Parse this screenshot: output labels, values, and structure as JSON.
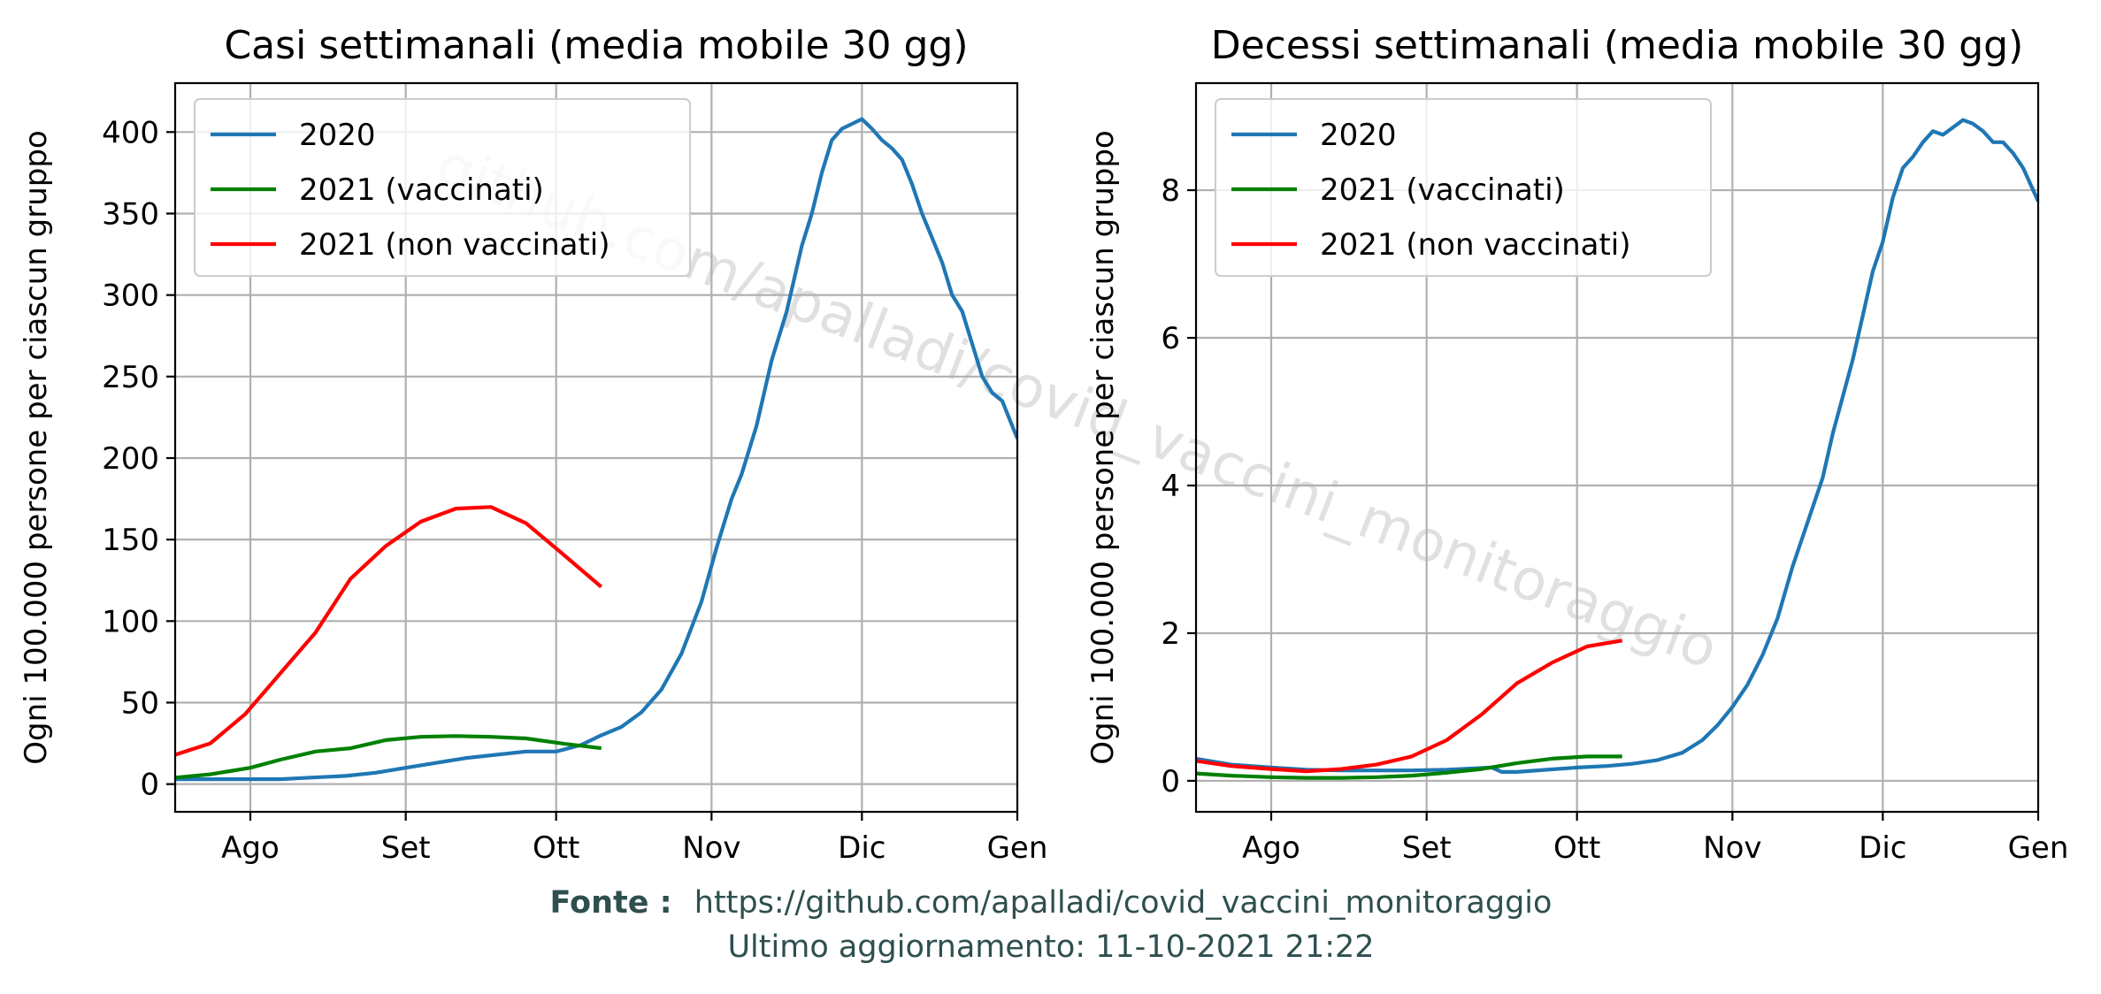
{
  "chart_data": [
    {
      "type": "line",
      "title": "Casi settimanali (media mobile 30 gg)",
      "ylabel": "Ogni 100.000 persone per ciascun gruppo",
      "x_ticks": [
        {
          "label": "Ago",
          "day": 0
        },
        {
          "label": "Set",
          "day": 31
        },
        {
          "label": "Ott",
          "day": 61
        },
        {
          "label": "Nov",
          "day": 92
        },
        {
          "label": "Dic",
          "day": 122
        },
        {
          "label": "Gen",
          "day": 153
        }
      ],
      "xlim_dates": [
        "mid-Jul",
        "Gen"
      ],
      "xlim": [
        -15,
        153
      ],
      "ylim": [
        -17,
        430
      ],
      "y_ticks": [
        0,
        50,
        100,
        150,
        200,
        250,
        300,
        350,
        400
      ],
      "grid": true,
      "legend_position": "upper-left",
      "series": [
        {
          "name": "2020",
          "color": "#1f77b4",
          "points": [
            [
              -15,
              3
            ],
            [
              -8,
              3
            ],
            [
              0,
              3
            ],
            [
              6,
              3
            ],
            [
              12,
              4
            ],
            [
              19,
              5
            ],
            [
              25,
              7
            ],
            [
              31,
              10
            ],
            [
              37,
              13
            ],
            [
              43,
              16
            ],
            [
              49,
              18
            ],
            [
              55,
              20
            ],
            [
              61,
              20
            ],
            [
              66,
              24
            ],
            [
              70,
              30
            ],
            [
              74,
              35
            ],
            [
              78,
              44
            ],
            [
              82,
              58
            ],
            [
              86,
              80
            ],
            [
              90,
              112
            ],
            [
              93,
              145
            ],
            [
              96,
              175
            ],
            [
              98,
              190
            ],
            [
              101,
              220
            ],
            [
              104,
              260
            ],
            [
              107,
              290
            ],
            [
              110,
              330
            ],
            [
              112,
              350
            ],
            [
              114,
              375
            ],
            [
              116,
              395
            ],
            [
              118,
              402
            ],
            [
              120,
              405
            ],
            [
              122,
              408
            ],
            [
              124,
              402
            ],
            [
              126,
              395
            ],
            [
              128,
              390
            ],
            [
              130,
              383
            ],
            [
              132,
              368
            ],
            [
              134,
              350
            ],
            [
              136,
              335
            ],
            [
              138,
              320
            ],
            [
              140,
              300
            ],
            [
              142,
              290
            ],
            [
              144,
              270
            ],
            [
              146,
              250
            ],
            [
              148,
              240
            ],
            [
              150,
              235
            ],
            [
              153,
              212
            ]
          ]
        },
        {
          "name": "2021 (vaccinati)",
          "color": "#008000",
          "points": [
            [
              -15,
              4
            ],
            [
              -8,
              6
            ],
            [
              0,
              10
            ],
            [
              6,
              15
            ],
            [
              13,
              20
            ],
            [
              20,
              22
            ],
            [
              27,
              27
            ],
            [
              34,
              29
            ],
            [
              41,
              29.5
            ],
            [
              48,
              29
            ],
            [
              55,
              28
            ],
            [
              62,
              25
            ],
            [
              70,
              22
            ]
          ]
        },
        {
          "name": "2021 (non vaccinati)",
          "color": "#ff0000",
          "points": [
            [
              -15,
              18
            ],
            [
              -8,
              25
            ],
            [
              -1,
              43
            ],
            [
              6,
              68
            ],
            [
              13,
              93
            ],
            [
              20,
              126
            ],
            [
              27,
              146
            ],
            [
              34,
              161
            ],
            [
              41,
              169
            ],
            [
              48,
              170
            ],
            [
              55,
              160
            ],
            [
              62,
              142
            ],
            [
              70,
              121
            ]
          ]
        }
      ]
    },
    {
      "type": "line",
      "title": "Decessi settimanali (media mobile 30 gg)",
      "ylabel": "Ogni 100.000 persone per ciascun gruppo",
      "x_ticks": [
        {
          "label": "Ago",
          "day": 0
        },
        {
          "label": "Set",
          "day": 31
        },
        {
          "label": "Ott",
          "day": 61
        },
        {
          "label": "Nov",
          "day": 92
        },
        {
          "label": "Dic",
          "day": 122
        },
        {
          "label": "Gen",
          "day": 153
        }
      ],
      "xlim_dates": [
        "mid-Jul",
        "Gen"
      ],
      "xlim": [
        -15,
        153
      ],
      "ylim": [
        -0.42,
        9.45
      ],
      "y_ticks": [
        0,
        2,
        4,
        6,
        8
      ],
      "grid": true,
      "legend_position": "upper-left",
      "series": [
        {
          "name": "2020",
          "color": "#1f77b4",
          "points": [
            [
              -15,
              0.3
            ],
            [
              -8,
              0.22
            ],
            [
              0,
              0.18
            ],
            [
              7,
              0.15
            ],
            [
              14,
              0.14
            ],
            [
              21,
              0.14
            ],
            [
              28,
              0.14
            ],
            [
              35,
              0.15
            ],
            [
              41,
              0.17
            ],
            [
              44,
              0.18
            ],
            [
              46,
              0.12
            ],
            [
              49,
              0.12
            ],
            [
              55,
              0.15
            ],
            [
              61,
              0.18
            ],
            [
              67,
              0.2
            ],
            [
              72,
              0.23
            ],
            [
              77,
              0.28
            ],
            [
              82,
              0.38
            ],
            [
              86,
              0.55
            ],
            [
              89,
              0.75
            ],
            [
              92,
              1.0
            ],
            [
              95,
              1.3
            ],
            [
              98,
              1.7
            ],
            [
              101,
              2.2
            ],
            [
              104,
              2.9
            ],
            [
              107,
              3.5
            ],
            [
              110,
              4.1
            ],
            [
              112,
              4.7
            ],
            [
              114,
              5.2
            ],
            [
              116,
              5.7
            ],
            [
              118,
              6.3
            ],
            [
              120,
              6.9
            ],
            [
              122,
              7.3
            ],
            [
              124,
              7.9
            ],
            [
              126,
              8.3
            ],
            [
              128,
              8.45
            ],
            [
              130,
              8.65
            ],
            [
              132,
              8.8
            ],
            [
              134,
              8.75
            ],
            [
              136,
              8.85
            ],
            [
              138,
              8.95
            ],
            [
              140,
              8.9
            ],
            [
              142,
              8.8
            ],
            [
              144,
              8.65
            ],
            [
              146,
              8.65
            ],
            [
              148,
              8.5
            ],
            [
              150,
              8.3
            ],
            [
              153,
              7.85
            ]
          ]
        },
        {
          "name": "2021 (vaccinati)",
          "color": "#008000",
          "points": [
            [
              -15,
              0.1
            ],
            [
              -8,
              0.07
            ],
            [
              0,
              0.05
            ],
            [
              7,
              0.04
            ],
            [
              14,
              0.04
            ],
            [
              21,
              0.05
            ],
            [
              28,
              0.07
            ],
            [
              35,
              0.11
            ],
            [
              42,
              0.16
            ],
            [
              49,
              0.24
            ],
            [
              56,
              0.3
            ],
            [
              63,
              0.33
            ],
            [
              70,
              0.33
            ]
          ]
        },
        {
          "name": "2021 (non vaccinati)",
          "color": "#ff0000",
          "points": [
            [
              -15,
              0.27
            ],
            [
              -8,
              0.2
            ],
            [
              0,
              0.16
            ],
            [
              7,
              0.13
            ],
            [
              14,
              0.16
            ],
            [
              21,
              0.22
            ],
            [
              28,
              0.33
            ],
            [
              35,
              0.55
            ],
            [
              42,
              0.9
            ],
            [
              49,
              1.32
            ],
            [
              56,
              1.6
            ],
            [
              63,
              1.82
            ],
            [
              70,
              1.9
            ]
          ]
        }
      ]
    }
  ],
  "watermark": "github.com/apalladi/covid_vaccini_monitoraggio",
  "footer": {
    "source_label": "Fonte :",
    "source_url": "https://github.com/apalladi/covid_vaccini_monitoraggio",
    "updated": "Ultimo aggiornamento: 11-10-2021 21:22"
  }
}
